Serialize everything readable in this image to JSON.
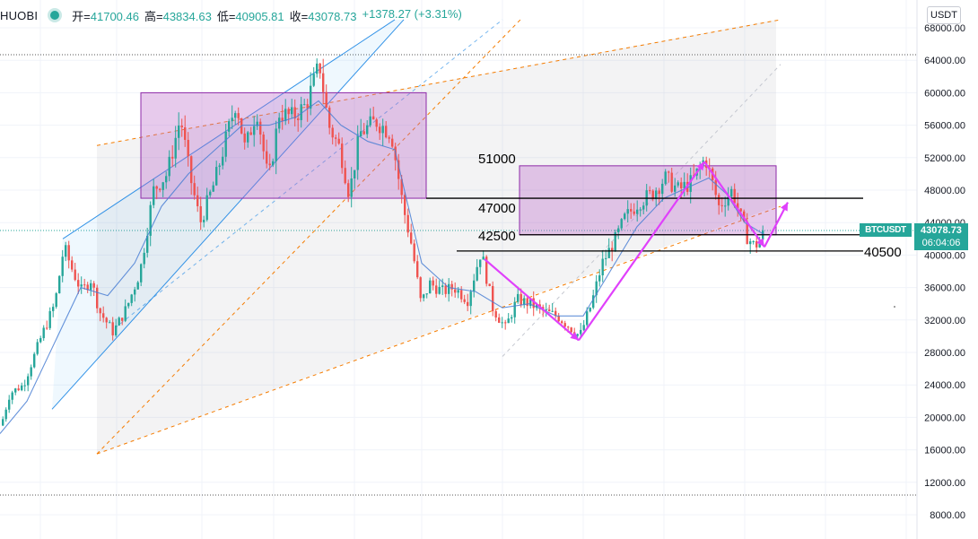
{
  "header": {
    "exchange": "HUOBI",
    "open_label": "开=",
    "open": "41700.46",
    "high_label": "高=",
    "high": "43834.63",
    "low_label": "低=",
    "low": "40905.81",
    "close_label": "收=",
    "close": "43078.73",
    "change": "+1378.27 (+3.31%)"
  },
  "axis": {
    "unit": "USDT"
  },
  "last_price": {
    "symbol": "BTCUSDT",
    "value": "43078.73",
    "countdown": "06:04:06"
  },
  "colors": {
    "up": "#26a69a",
    "down": "#ef5350",
    "ma": "#4a7fd4",
    "zone_fill": "#d9a6e6",
    "zone_border": "#8e2aa8",
    "arrow": "#e040fb",
    "channel": "#1e88e5",
    "trend_dashed": "#f57c00"
  },
  "chart_data": {
    "type": "candlestick",
    "y_axis": {
      "position": "right",
      "ticks": [
        8000,
        12000,
        16000,
        20000,
        24000,
        28000,
        32000,
        36000,
        40000,
        44000,
        48000,
        52000,
        56000,
        60000,
        64000,
        68000
      ],
      "tick_labels": [
        "8000.00",
        "12000.00",
        "16000.00",
        "20000.00",
        "24000.00",
        "28000.00",
        "32000.00",
        "36000.00",
        "40000.00",
        "44000.00",
        "48000.00",
        "52000.00",
        "56000.00",
        "60000.00",
        "64000.00",
        "68000.00"
      ]
    },
    "price_path": [
      [
        0,
        19000
      ],
      [
        10,
        23000
      ],
      [
        25,
        24000
      ],
      [
        45,
        30000
      ],
      [
        60,
        34000
      ],
      [
        70,
        41000
      ],
      [
        80,
        38000
      ],
      [
        90,
        35500
      ],
      [
        100,
        37000
      ],
      [
        110,
        33000
      ],
      [
        125,
        30500
      ],
      [
        140,
        33500
      ],
      [
        155,
        38000
      ],
      [
        170,
        48000
      ],
      [
        185,
        50000
      ],
      [
        200,
        57000
      ],
      [
        210,
        50000
      ],
      [
        222,
        44000
      ],
      [
        238,
        49000
      ],
      [
        250,
        54000
      ],
      [
        262,
        59000
      ],
      [
        272,
        53000
      ],
      [
        285,
        58000
      ],
      [
        298,
        49000
      ],
      [
        310,
        57500
      ],
      [
        325,
        57000
      ],
      [
        340,
        58500
      ],
      [
        355,
        63500
      ],
      [
        365,
        56000
      ],
      [
        378,
        53000
      ],
      [
        388,
        47500
      ],
      [
        400,
        55000
      ],
      [
        418,
        56500
      ],
      [
        435,
        55000
      ],
      [
        448,
        46000
      ],
      [
        458,
        41000
      ],
      [
        468,
        34000
      ],
      [
        478,
        36500
      ],
      [
        492,
        35500
      ],
      [
        505,
        36000
      ],
      [
        520,
        34500
      ],
      [
        535,
        40500
      ],
      [
        548,
        33500
      ],
      [
        562,
        31000
      ],
      [
        575,
        34500
      ],
      [
        590,
        34000
      ],
      [
        605,
        33000
      ],
      [
        620,
        32500
      ],
      [
        635,
        31000
      ],
      [
        645,
        30000
      ],
      [
        658,
        34000
      ],
      [
        670,
        39000
      ],
      [
        685,
        42000
      ],
      [
        695,
        44500
      ],
      [
        710,
        46500
      ],
      [
        725,
        47500
      ],
      [
        740,
        49500
      ],
      [
        755,
        48000
      ],
      [
        770,
        49000
      ],
      [
        785,
        52000
      ],
      [
        800,
        46000
      ],
      [
        815,
        48000
      ],
      [
        830,
        42500
      ],
      [
        840,
        41000
      ],
      [
        852,
        43000
      ]
    ],
    "moving_average": [
      [
        0,
        18000
      ],
      [
        30,
        22000
      ],
      [
        60,
        29000
      ],
      [
        90,
        36000
      ],
      [
        120,
        35000
      ],
      [
        150,
        39000
      ],
      [
        180,
        46000
      ],
      [
        210,
        50000
      ],
      [
        240,
        53000
      ],
      [
        270,
        56000
      ],
      [
        300,
        56000
      ],
      [
        330,
        57000
      ],
      [
        355,
        59000
      ],
      [
        380,
        56000
      ],
      [
        410,
        54000
      ],
      [
        440,
        53000
      ],
      [
        455,
        46000
      ],
      [
        470,
        39000
      ],
      [
        500,
        36000
      ],
      [
        530,
        35500
      ],
      [
        560,
        33500
      ],
      [
        590,
        34000
      ],
      [
        620,
        32500
      ],
      [
        650,
        32500
      ],
      [
        680,
        38000
      ],
      [
        710,
        43500
      ],
      [
        740,
        47000
      ],
      [
        770,
        48500
      ],
      [
        790,
        49500
      ],
      [
        810,
        47500
      ],
      [
        830,
        44000
      ],
      [
        852,
        42500
      ]
    ],
    "zones": [
      {
        "name": "upper-range",
        "x0": 157,
        "x1": 475,
        "y_top": 60000,
        "y_bottom": 47000
      },
      {
        "name": "current-range",
        "x0": 579,
        "x1": 865,
        "y_top": 51000,
        "y_bottom": 42500
      }
    ],
    "horizontal_levels": [
      {
        "value": 47000,
        "label": "47000",
        "x0": 475,
        "x1": 962
      },
      {
        "value": 42500,
        "label": "42500",
        "x0": 579,
        "x1": 962
      },
      {
        "value": 40500,
        "label": "40500",
        "x0": 509,
        "x1": 962
      }
    ],
    "price_labels": [
      {
        "value": 51000,
        "label": "51000"
      }
    ],
    "arrows": [
      {
        "from": [
          540,
          39500
        ],
        "to": [
          645,
          29500
        ]
      },
      {
        "from": [
          645,
          29500
        ],
        "to": [
          785,
          51500
        ]
      },
      {
        "from": [
          785,
          51500
        ],
        "to": [
          852,
          41000
        ]
      },
      {
        "from": [
          852,
          41000
        ],
        "to": [
          878,
          46500
        ]
      }
    ],
    "ascending_channel": {
      "lines": [
        [
          [
            58,
            21000
          ],
          [
            450,
            69000
          ]
        ],
        [
          [
            70,
            42000
          ],
          [
            440,
            69000
          ]
        ],
        [
          [
            128,
            31000
          ],
          [
            560,
            69000
          ]
        ]
      ]
    },
    "dashed_trendlines": [
      [
        [
          108,
          15500
        ],
        [
          580,
          69000
        ]
      ],
      [
        [
          108,
          53500
        ],
        [
          870,
          69000
        ]
      ],
      [
        [
          108,
          15500
        ],
        [
          870,
          46000
        ]
      ],
      [
        [
          560,
          27500
        ],
        [
          870,
          63500
        ]
      ]
    ],
    "shaded_regions": [
      {
        "x0": 108,
        "x1": 865,
        "y_top": 69000,
        "y_bottom": 15500
      }
    ]
  }
}
